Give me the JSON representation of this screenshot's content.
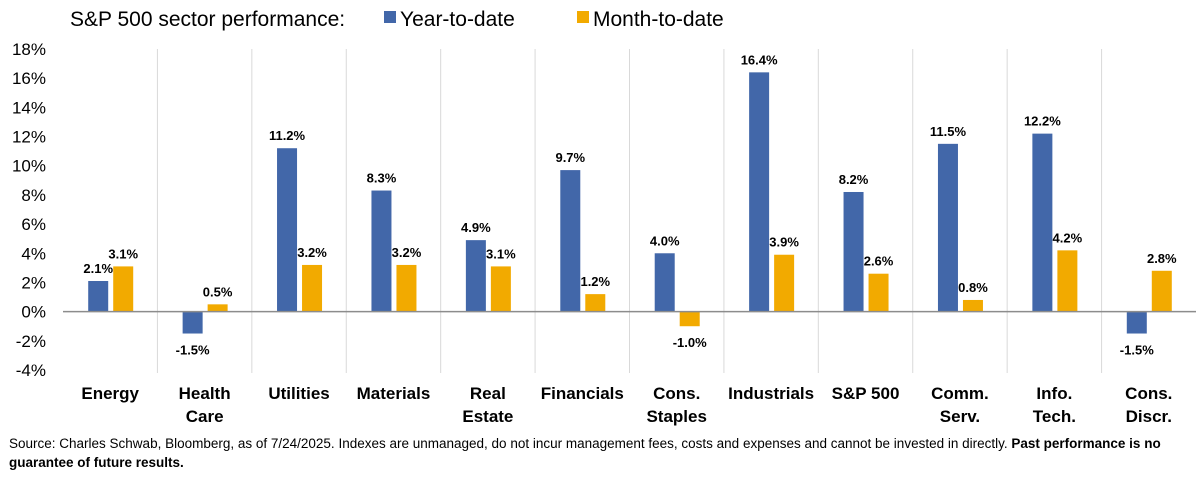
{
  "chart_data": {
    "type": "bar",
    "title": "S&P 500 sector performance:",
    "categories": [
      [
        "Energy"
      ],
      [
        "Health",
        "Care"
      ],
      [
        "Utilities"
      ],
      [
        "Materials"
      ],
      [
        "Real",
        "Estate"
      ],
      [
        "Financials"
      ],
      [
        "Cons.",
        "Staples"
      ],
      [
        "Industrials"
      ],
      [
        "S&P 500"
      ],
      [
        "Comm.",
        "Serv."
      ],
      [
        "Info.",
        "Tech."
      ],
      [
        "Cons.",
        "Discr."
      ]
    ],
    "series": [
      {
        "name": "Year-to-date",
        "color": "#4267A9",
        "values": [
          2.1,
          -1.5,
          11.2,
          8.3,
          4.9,
          9.7,
          4.0,
          16.4,
          8.2,
          11.5,
          12.2,
          -1.5
        ],
        "labels": [
          "2.1%",
          "-1.5%",
          "11.2%",
          "8.3%",
          "4.9%",
          "9.7%",
          "4.0%",
          "16.4%",
          "8.2%",
          "11.5%",
          "12.2%",
          "-1.5%"
        ]
      },
      {
        "name": "Month-to-date",
        "color": "#F2AA00",
        "values": [
          3.1,
          0.5,
          3.2,
          3.2,
          3.1,
          1.2,
          -1.0,
          3.9,
          2.6,
          0.8,
          4.2,
          2.8
        ],
        "labels": [
          "3.1%",
          "0.5%",
          "3.2%",
          "3.2%",
          "3.1%",
          "1.2%",
          "-1.0%",
          "3.9%",
          "2.6%",
          "0.8%",
          "4.2%",
          "2.8%"
        ]
      }
    ],
    "yticks": [
      18,
      16,
      14,
      12,
      10,
      8,
      6,
      4,
      2,
      0,
      -2,
      -4
    ],
    "ytick_labels": [
      "18%",
      "16%",
      "14%",
      "12%",
      "10%",
      "8%",
      "6%",
      "4%",
      "2%",
      "0%",
      "-2%",
      "-4%"
    ],
    "ylim": [
      -4,
      18
    ],
    "xlabel": "",
    "ylabel": "",
    "legend": "top",
    "grid": "vertical separators only"
  },
  "source": {
    "text": "Source: Charles Schwab, Bloomberg, as of 7/24/2025.  Indexes are unmanaged, do not incur management fees, costs and expenses and cannot be invested in directly.",
    "bold": "Past performance is no guarantee of future results."
  }
}
